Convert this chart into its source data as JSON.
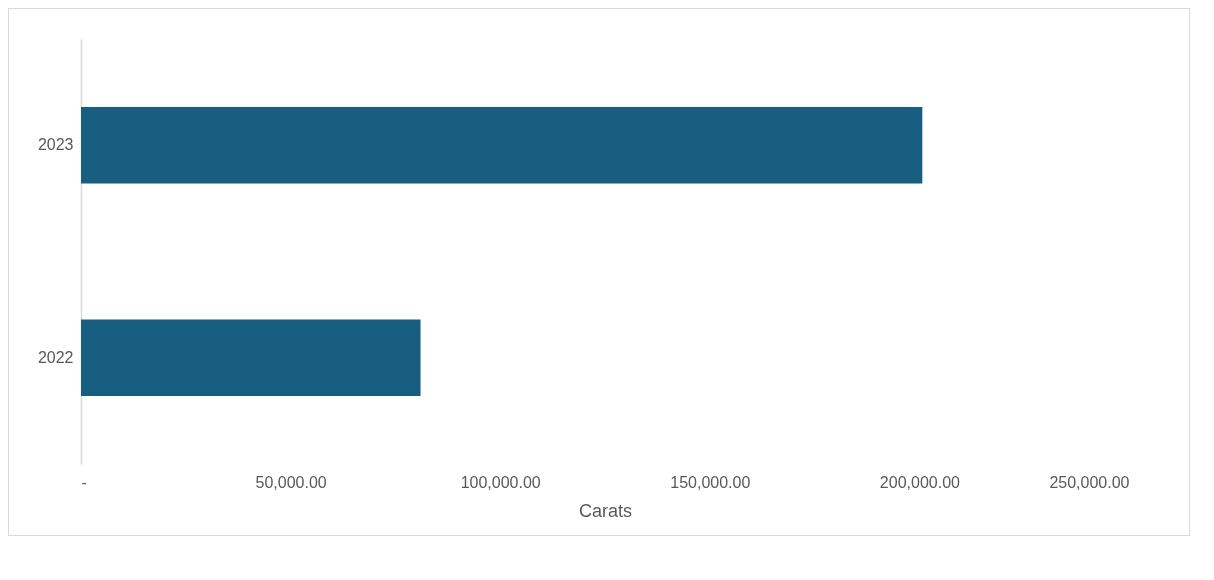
{
  "chart_data": {
    "type": "bar",
    "orientation": "horizontal",
    "categories": [
      "2023",
      "2022"
    ],
    "values": [
      200700,
      81000
    ],
    "color": "#175e80",
    "xlabel": "Carats",
    "xlim": [
      0,
      250000
    ],
    "xticks": [
      {
        "value": 0,
        "label": "-"
      },
      {
        "value": 50000,
        "label": "50,000.00"
      },
      {
        "value": 100000,
        "label": "100,000.00"
      },
      {
        "value": 150000,
        "label": "150,000.00"
      },
      {
        "value": 200000,
        "label": "200,000.00"
      },
      {
        "value": 250000,
        "label": "250,000.00"
      }
    ],
    "grid": false
  }
}
